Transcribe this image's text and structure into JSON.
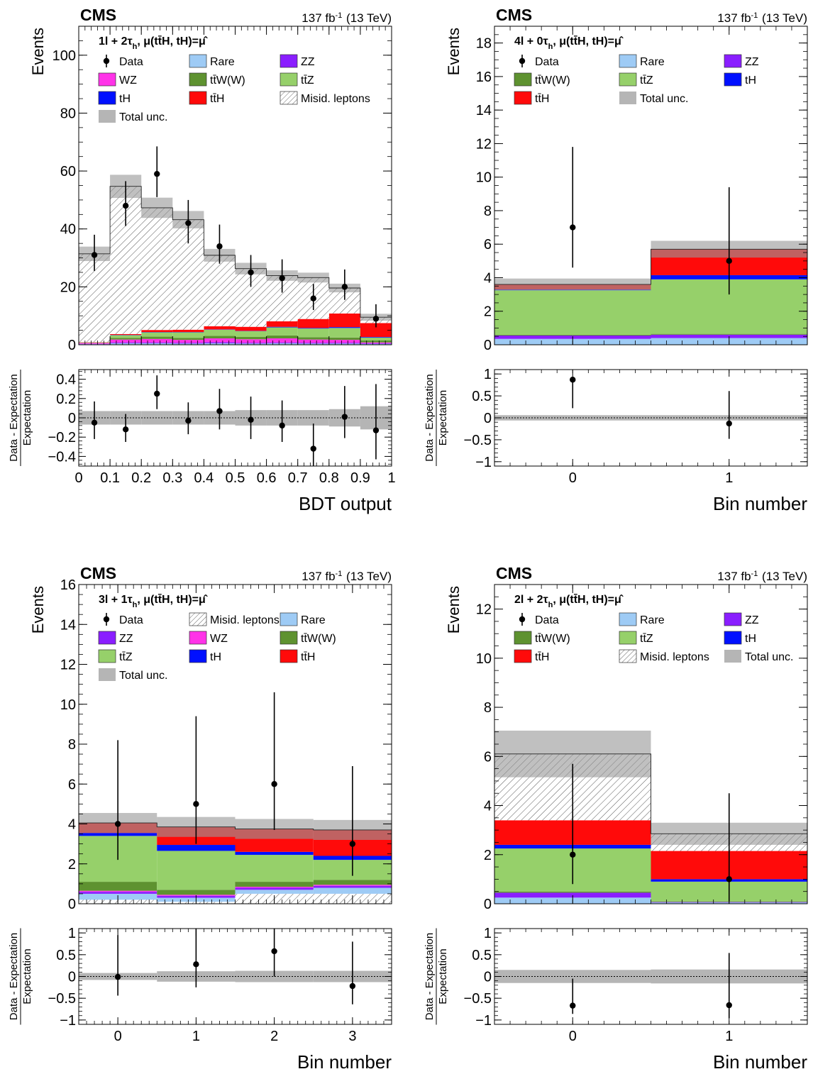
{
  "colors": {
    "Data": "#000000",
    "Rare": "#9ecbf5",
    "ZZ": "#8a1eff",
    "WZ": "#ff33e8",
    "ttW(W)": "#5e9230",
    "ttZ": "#96d06a",
    "tH": "#0010ff",
    "ttH": "#ff0a0a",
    "Misid. leptons": "#ffffff",
    "Total unc.": "#b5b5b5"
  },
  "chart_data": [
    {
      "id": "p1",
      "type": "bar",
      "experiment": "CMS",
      "lumi": "137 fb",
      "lumi_sup": "-1",
      "energy": "(13 TeV)",
      "title_html": "<tspan font-weight='bold'>1l + 2τ</tspan><tspan font-weight='bold' baseline-shift='sub' font-size='11'>h</tspan><tspan font-weight='bold'>,  μ(tt̄H, tH)=μ̂</tspan>",
      "ylabel": "Events",
      "xlabel": "BDT output",
      "ratio_label_top": "Data - Expectation",
      "ratio_label_bottom": "Expectation",
      "edges": [
        0,
        0.1,
        0.2,
        0.3,
        0.4,
        0.5,
        0.6,
        0.7,
        0.8,
        0.9,
        1.0
      ],
      "xlim": [
        0,
        1
      ],
      "ylim": [
        0,
        110
      ],
      "yticks": [
        0,
        20,
        40,
        60,
        80,
        100
      ],
      "xticks": [
        0,
        0.1,
        0.2,
        0.3,
        0.4,
        0.5,
        0.6,
        0.7,
        0.8,
        0.9,
        1
      ],
      "xtick_labels": [
        "0",
        "0.1",
        "0.2",
        "0.3",
        "0.4",
        "0.5",
        "0.6",
        "0.7",
        "0.8",
        "0.9",
        "1"
      ],
      "ratio_ylim": [
        -0.5,
        0.5
      ],
      "ratio_yticks": [
        -0.4,
        -0.2,
        0,
        0.2,
        0.4
      ],
      "ratio_ytick_labels": [
        "−0.4",
        "−0.2",
        "0",
        "0.2",
        "0.4"
      ],
      "legend_columns": 3,
      "legend": [
        "Data",
        "Rare",
        "ZZ",
        "WZ",
        "ttW(W)",
        "ttZ",
        "tH",
        "ttH",
        "Misid. leptons",
        "Total unc."
      ],
      "legend_labels": [
        "Data",
        "Rare",
        "ZZ",
        "WZ",
        "tt̄W(W)",
        "tt̄Z",
        "tH",
        "tt̄H",
        "Misid. leptons",
        "Total unc."
      ],
      "stack": [
        {
          "name": "Rare",
          "values": [
            0.2,
            0.5,
            0.5,
            0.4,
            0.5,
            0.4,
            0.5,
            0.4,
            0.4,
            0.3
          ]
        },
        {
          "name": "ZZ",
          "values": [
            0.1,
            0.3,
            0.3,
            0.3,
            0.4,
            0.3,
            0.3,
            0.3,
            0.3,
            0.2
          ]
        },
        {
          "name": "WZ",
          "values": [
            0.3,
            1.0,
            1.2,
            1.0,
            1.3,
            1.2,
            1.4,
            1.1,
            1.0,
            0.3
          ]
        },
        {
          "name": "ttW(W)",
          "values": [
            0.1,
            0.6,
            0.8,
            0.7,
            0.9,
            0.8,
            1.0,
            0.8,
            0.8,
            0.7
          ]
        },
        {
          "name": "ttZ",
          "values": [
            0.1,
            0.9,
            1.5,
            1.9,
            2.1,
            2.0,
            2.8,
            3.0,
            3.3,
            1.0
          ]
        },
        {
          "name": "tH",
          "values": [
            0.0,
            0.1,
            0.1,
            0.1,
            0.1,
            0.1,
            0.2,
            0.2,
            0.3,
            0.2
          ]
        },
        {
          "name": "ttH",
          "values": [
            0.1,
            0.3,
            0.7,
            0.8,
            1.1,
            1.4,
            1.9,
            3.1,
            4.7,
            4.8
          ]
        },
        {
          "name": "Misid. leptons",
          "values": [
            30.5,
            51.0,
            42.2,
            38.0,
            24.5,
            20.1,
            15.8,
            14.3,
            8.8,
            2.0
          ]
        }
      ],
      "total_unc": [
        2.5,
        4.0,
        3.5,
        3.0,
        2.2,
        2.0,
        1.8,
        1.7,
        1.5,
        1.2
      ],
      "data": {
        "x": [
          0.05,
          0.15,
          0.25,
          0.35,
          0.45,
          0.55,
          0.65,
          0.75,
          0.85,
          0.95
        ],
        "y": [
          31,
          48,
          59,
          42,
          34,
          25,
          23,
          16,
          20,
          9
        ],
        "err_hi": [
          7.0,
          8.5,
          9.5,
          8.0,
          7.5,
          6.0,
          6.5,
          5.0,
          6.0,
          5.0
        ],
        "err_lo": [
          5.5,
          7.0,
          8.0,
          7.0,
          6.0,
          5.0,
          5.0,
          4.0,
          4.5,
          3.0
        ]
      },
      "ratio": {
        "y": [
          -0.05,
          -0.12,
          0.25,
          -0.03,
          0.07,
          -0.02,
          -0.08,
          -0.32,
          0.01,
          -0.13
        ],
        "err_hi": [
          0.22,
          0.16,
          0.19,
          0.19,
          0.23,
          0.24,
          0.26,
          0.26,
          0.32,
          0.48
        ],
        "err_lo": [
          0.17,
          0.13,
          0.16,
          0.14,
          0.19,
          0.2,
          0.17,
          0.18,
          0.22,
          0.3
        ],
        "unc": [
          0.07,
          0.07,
          0.07,
          0.07,
          0.07,
          0.08,
          0.08,
          0.08,
          0.09,
          0.12
        ]
      }
    },
    {
      "id": "p2",
      "type": "bar",
      "experiment": "CMS",
      "lumi": "137 fb",
      "lumi_sup": "-1",
      "energy": "(13 TeV)",
      "title_html": "<tspan font-weight='bold'>4l + 0τ</tspan><tspan font-weight='bold' baseline-shift='sub' font-size='11'>h</tspan><tspan font-weight='bold'>,  μ(tt̄H, tH)=μ̂</tspan>",
      "ylabel": "Events",
      "xlabel": "Bin number",
      "ratio_label_top": "Data - Expectation",
      "ratio_label_bottom": "Expectation",
      "edges": [
        -0.5,
        0.5,
        1.5
      ],
      "xlim": [
        -0.5,
        1.5
      ],
      "ylim": [
        0,
        19
      ],
      "yticks": [
        0,
        2,
        4,
        6,
        8,
        10,
        12,
        14,
        16,
        18
      ],
      "xticks": [
        0,
        1
      ],
      "xtick_labels": [
        "0",
        "1"
      ],
      "ratio_ylim": [
        -1.1,
        1.1
      ],
      "ratio_yticks": [
        -1,
        -0.5,
        0,
        0.5,
        1
      ],
      "ratio_ytick_labels": [
        "−1",
        "−0.5",
        "0",
        "0.5",
        "1"
      ],
      "legend_columns": 3,
      "legend": [
        "Data",
        "Rare",
        "ZZ",
        "ttW(W)",
        "ttZ",
        "tH",
        "ttH",
        "Total unc."
      ],
      "legend_labels": [
        "Data",
        "Rare",
        "ZZ",
        "tt̄W(W)",
        "tt̄Z",
        "tH",
        "tt̄H",
        "Total unc."
      ],
      "stack": [
        {
          "name": "Rare",
          "values": [
            0.35,
            0.4
          ]
        },
        {
          "name": "ZZ",
          "values": [
            0.2,
            0.2
          ]
        },
        {
          "name": "ttW(W)",
          "values": [
            0.05,
            0.05
          ]
        },
        {
          "name": "ttZ",
          "values": [
            2.65,
            3.25
          ]
        },
        {
          "name": "tH",
          "values": [
            0.05,
            0.25
          ]
        },
        {
          "name": "ttH",
          "values": [
            0.3,
            1.55
          ]
        }
      ],
      "total_unc": [
        0.35,
        0.5
      ],
      "data": {
        "x": [
          0,
          1
        ],
        "y": [
          7,
          5
        ],
        "err_hi": [
          4.8,
          4.4
        ],
        "err_lo": [
          2.4,
          2.0
        ]
      },
      "ratio": {
        "y": [
          0.87,
          -0.13
        ],
        "err_hi": [
          0.0,
          0.74
        ],
        "err_lo": [
          0.65,
          0.35
        ],
        "unc": [
          0.06,
          0.06
        ]
      }
    },
    {
      "id": "p3",
      "type": "bar",
      "experiment": "CMS",
      "lumi": "137 fb",
      "lumi_sup": "-1",
      "energy": "(13 TeV)",
      "title_html": "<tspan font-weight='bold'>3l + 1τ</tspan><tspan font-weight='bold' baseline-shift='sub' font-size='11'>h</tspan><tspan font-weight='bold'>,  μ(tt̄H, tH)=μ̂</tspan>",
      "ylabel": "Events",
      "xlabel": "Bin number",
      "ratio_label_top": "Data - Expectation",
      "ratio_label_bottom": "Expectation",
      "edges": [
        -0.5,
        0.5,
        1.5,
        2.5,
        3.5
      ],
      "xlim": [
        -0.5,
        3.5
      ],
      "ylim": [
        0,
        16
      ],
      "yticks": [
        0,
        2,
        4,
        6,
        8,
        10,
        12,
        14,
        16
      ],
      "xticks": [
        0,
        1,
        2,
        3
      ],
      "xtick_labels": [
        "0",
        "1",
        "2",
        "3"
      ],
      "ratio_ylim": [
        -1.1,
        1.1
      ],
      "ratio_yticks": [
        -1,
        -0.5,
        0,
        0.5,
        1
      ],
      "ratio_ytick_labels": [
        "−1",
        "−0.5",
        "0",
        "0.5",
        "1"
      ],
      "legend_columns": 3,
      "legend": [
        "Data",
        "Misid. leptons",
        "Rare",
        "ZZ",
        "WZ",
        "ttW(W)",
        "ttZ",
        "tH",
        "ttH",
        "Total unc."
      ],
      "legend_labels": [
        "Data",
        "Misid. leptons",
        "Rare",
        "ZZ",
        "WZ",
        "tt̄W(W)",
        "tt̄Z",
        "tH",
        "tt̄H",
        "Total unc."
      ],
      "stack": [
        {
          "name": "Misid. leptons",
          "values": [
            0.2,
            0.1,
            0.5,
            0.5
          ]
        },
        {
          "name": "Rare",
          "values": [
            0.3,
            0.2,
            0.2,
            0.3
          ]
        },
        {
          "name": "ZZ",
          "values": [
            0.1,
            0.1,
            0.1,
            0.1
          ]
        },
        {
          "name": "WZ",
          "values": [
            0.05,
            0.05,
            0.05,
            0.05
          ]
        },
        {
          "name": "ttW(W)",
          "values": [
            0.45,
            0.25,
            0.25,
            0.25
          ]
        },
        {
          "name": "ttZ",
          "values": [
            2.3,
            1.95,
            1.35,
            1.0
          ]
        },
        {
          "name": "tH",
          "values": [
            0.15,
            0.3,
            0.15,
            0.2
          ]
        },
        {
          "name": "ttH",
          "values": [
            0.5,
            0.9,
            1.15,
            1.3
          ]
        }
      ],
      "total_unc": [
        0.5,
        0.5,
        0.5,
        0.5
      ],
      "data": {
        "x": [
          0,
          1,
          2,
          3
        ],
        "y": [
          4,
          5,
          6,
          3
        ],
        "err_hi": [
          4.2,
          4.4,
          4.6,
          3.9
        ],
        "err_lo": [
          1.8,
          2.0,
          2.3,
          1.6
        ]
      },
      "ratio": {
        "y": [
          -0.01,
          0.28,
          0.58,
          -0.22
        ],
        "err_hi": [
          0.96,
          0.82,
          0.52,
          1.02
        ],
        "err_lo": [
          0.43,
          0.53,
          0.58,
          0.42
        ],
        "unc": [
          0.08,
          0.12,
          0.13,
          0.13
        ]
      }
    },
    {
      "id": "p4",
      "type": "bar",
      "experiment": "CMS",
      "lumi": "137 fb",
      "lumi_sup": "-1",
      "energy": "(13 TeV)",
      "title_html": "<tspan font-weight='bold'>2l + 2τ</tspan><tspan font-weight='bold' baseline-shift='sub' font-size='11'>h</tspan><tspan font-weight='bold'>,  μ(tt̄H, tH)=μ̂</tspan>",
      "ylabel": "Events",
      "xlabel": "Bin number",
      "ratio_label_top": "Data - Expectation",
      "ratio_label_bottom": "Expectation",
      "edges": [
        -0.5,
        0.5,
        1.5
      ],
      "xlim": [
        -0.5,
        1.5
      ],
      "ylim": [
        0,
        13
      ],
      "yticks": [
        0,
        2,
        4,
        6,
        8,
        10,
        12
      ],
      "xticks": [
        0,
        1
      ],
      "xtick_labels": [
        "0",
        "1"
      ],
      "ratio_ylim": [
        -1.1,
        1.1
      ],
      "ratio_yticks": [
        -1,
        -0.5,
        0,
        0.5,
        1
      ],
      "ratio_ytick_labels": [
        "−1",
        "−0.5",
        "0",
        "0.5",
        "1"
      ],
      "legend_columns": 3,
      "legend": [
        "Data",
        "Rare",
        "ZZ",
        "ttW(W)",
        "ttZ",
        "tH",
        "ttH",
        "Misid. leptons",
        "Total unc."
      ],
      "legend_labels": [
        "Data",
        "Rare",
        "ZZ",
        "tt̄W(W)",
        "tt̄Z",
        "tH",
        "tt̄H",
        "Misid. leptons",
        "Total unc."
      ],
      "stack": [
        {
          "name": "Rare",
          "values": [
            0.25,
            0.05
          ]
        },
        {
          "name": "ZZ",
          "values": [
            0.2,
            0.02
          ]
        },
        {
          "name": "ttW(W)",
          "values": [
            0.05,
            0.02
          ]
        },
        {
          "name": "ttZ",
          "values": [
            1.75,
            0.81
          ]
        },
        {
          "name": "tH",
          "values": [
            0.15,
            0.1
          ]
        },
        {
          "name": "ttH",
          "values": [
            1.0,
            1.15
          ]
        },
        {
          "name": "Misid. leptons",
          "values": [
            2.7,
            0.7
          ]
        }
      ],
      "total_unc": [
        0.95,
        0.45
      ],
      "data": {
        "x": [
          0,
          1
        ],
        "y": [
          2,
          1
        ],
        "err_hi": [
          3.7,
          3.5
        ],
        "err_lo": [
          1.2,
          0.9
        ]
      },
      "ratio": {
        "y": [
          -0.67,
          -0.66
        ],
        "err_hi": [
          0.62,
          1.2
        ],
        "err_lo": [
          0.19,
          0.3
        ],
        "unc": [
          0.15,
          0.16
        ]
      }
    }
  ]
}
